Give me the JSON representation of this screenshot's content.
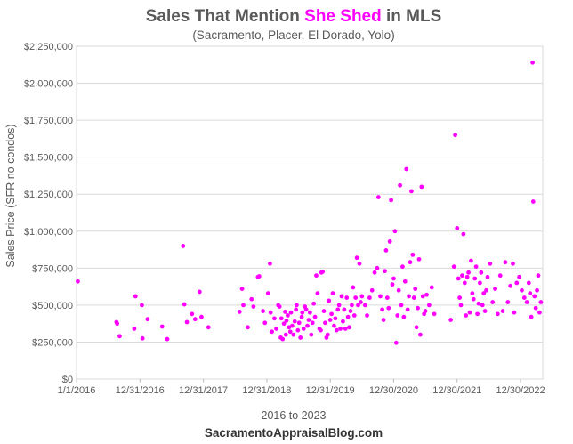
{
  "chart_data": {
    "type": "scatter",
    "title_prefix": "Sales That Mention ",
    "title_highlight": "She Shed",
    "title_suffix": " in MLS",
    "subtitle": "(Sacramento, Placer, El Dorado, Yolo)",
    "ylabel": "Sales Price (SFR no condos)",
    "xlabel": "2016 to 2023",
    "footer": "SacramentoAppraisalBlog.com",
    "x_unit": "years since 1/1/2016",
    "xlim": [
      0,
      7.35
    ],
    "ylim": [
      0,
      2250000
    ],
    "y_ticks": [
      {
        "value": 0,
        "label": "$0"
      },
      {
        "value": 250000,
        "label": "$250,000"
      },
      {
        "value": 500000,
        "label": "$500,000"
      },
      {
        "value": 750000,
        "label": "$750,000"
      },
      {
        "value": 1000000,
        "label": "$1,000,000"
      },
      {
        "value": 1250000,
        "label": "$1,250,000"
      },
      {
        "value": 1500000,
        "label": "$1,500,000"
      },
      {
        "value": 1750000,
        "label": "$1,750,000"
      },
      {
        "value": 2000000,
        "label": "$2,000,000"
      },
      {
        "value": 2250000,
        "label": "$2,250,000"
      }
    ],
    "x_ticks": [
      {
        "value": 0,
        "label": "1/1/2016"
      },
      {
        "value": 1,
        "label": "12/31/2016"
      },
      {
        "value": 2,
        "label": "12/31/2017"
      },
      {
        "value": 3,
        "label": "12/31/2018"
      },
      {
        "value": 4,
        "label": "12/31/2019"
      },
      {
        "value": 5,
        "label": "12/30/2020"
      },
      {
        "value": 6,
        "label": "12/30/2021"
      },
      {
        "value": 7,
        "label": "12/30/2022"
      }
    ],
    "grid": "horizontal",
    "marker_color": "#ff00ff",
    "series": [
      {
        "name": "She Shed sales",
        "points": [
          [
            0.02,
            660000
          ],
          [
            0.63,
            385000
          ],
          [
            0.64,
            375000
          ],
          [
            0.68,
            290000
          ],
          [
            0.91,
            340000
          ],
          [
            0.93,
            560000
          ],
          [
            1.03,
            500000
          ],
          [
            1.04,
            275000
          ],
          [
            1.12,
            405000
          ],
          [
            1.35,
            355000
          ],
          [
            1.43,
            270000
          ],
          [
            1.68,
            900000
          ],
          [
            1.7,
            505000
          ],
          [
            1.74,
            385000
          ],
          [
            1.82,
            440000
          ],
          [
            1.87,
            405000
          ],
          [
            1.94,
            590000
          ],
          [
            1.97,
            420000
          ],
          [
            2.08,
            350000
          ],
          [
            2.57,
            455000
          ],
          [
            2.61,
            610000
          ],
          [
            2.63,
            500000
          ],
          [
            2.7,
            350000
          ],
          [
            2.76,
            540000
          ],
          [
            2.79,
            490000
          ],
          [
            2.86,
            690000
          ],
          [
            2.88,
            695000
          ],
          [
            2.94,
            460000
          ],
          [
            2.97,
            380000
          ],
          [
            3.02,
            580000
          ],
          [
            3.05,
            780000
          ],
          [
            3.06,
            450000
          ],
          [
            3.08,
            320000
          ],
          [
            3.12,
            410000
          ],
          [
            3.15,
            340000
          ],
          [
            3.18,
            500000
          ],
          [
            3.2,
            490000
          ],
          [
            3.22,
            280000
          ],
          [
            3.23,
            410000
          ],
          [
            3.25,
            270000
          ],
          [
            3.27,
            375000
          ],
          [
            3.29,
            455000
          ],
          [
            3.3,
            300000
          ],
          [
            3.31,
            395000
          ],
          [
            3.33,
            430000
          ],
          [
            3.35,
            350000
          ],
          [
            3.37,
            320000
          ],
          [
            3.38,
            450000
          ],
          [
            3.4,
            360000
          ],
          [
            3.42,
            300000
          ],
          [
            3.44,
            390000
          ],
          [
            3.46,
            470000
          ],
          [
            3.47,
            500000
          ],
          [
            3.49,
            330000
          ],
          [
            3.51,
            380000
          ],
          [
            3.53,
            280000
          ],
          [
            3.55,
            420000
          ],
          [
            3.56,
            450000
          ],
          [
            3.58,
            340000
          ],
          [
            3.6,
            490000
          ],
          [
            3.62,
            470000
          ],
          [
            3.64,
            360000
          ],
          [
            3.66,
            400000
          ],
          [
            3.68,
            450000
          ],
          [
            3.7,
            300000
          ],
          [
            3.72,
            380000
          ],
          [
            3.74,
            510000
          ],
          [
            3.76,
            420000
          ],
          [
            3.78,
            700000
          ],
          [
            3.8,
            580000
          ],
          [
            3.83,
            340000
          ],
          [
            3.85,
            330000
          ],
          [
            3.86,
            720000
          ],
          [
            3.88,
            725000
          ],
          [
            3.9,
            460000
          ],
          [
            3.92,
            380000
          ],
          [
            3.94,
            280000
          ],
          [
            3.96,
            300000
          ],
          [
            3.98,
            530000
          ],
          [
            4.0,
            400000
          ],
          [
            4.02,
            440000
          ],
          [
            4.04,
            580000
          ],
          [
            4.06,
            360000
          ],
          [
            4.08,
            410000
          ],
          [
            4.1,
            330000
          ],
          [
            4.12,
            470000
          ],
          [
            4.14,
            500000
          ],
          [
            4.16,
            340000
          ],
          [
            4.18,
            560000
          ],
          [
            4.2,
            390000
          ],
          [
            4.22,
            470000
          ],
          [
            4.24,
            340000
          ],
          [
            4.26,
            550000
          ],
          [
            4.28,
            420000
          ],
          [
            4.3,
            350000
          ],
          [
            4.32,
            460000
          ],
          [
            4.34,
            500000
          ],
          [
            4.36,
            620000
          ],
          [
            4.38,
            430000
          ],
          [
            4.4,
            550000
          ],
          [
            4.42,
            820000
          ],
          [
            4.44,
            500000
          ],
          [
            4.46,
            780000
          ],
          [
            4.48,
            520000
          ],
          [
            4.5,
            560000
          ],
          [
            4.55,
            500000
          ],
          [
            4.58,
            430000
          ],
          [
            4.62,
            550000
          ],
          [
            4.66,
            600000
          ],
          [
            4.7,
            720000
          ],
          [
            4.74,
            750000
          ],
          [
            4.76,
            1230000
          ],
          [
            4.79,
            560000
          ],
          [
            4.82,
            470000
          ],
          [
            4.84,
            400000
          ],
          [
            4.86,
            730000
          ],
          [
            4.88,
            870000
          ],
          [
            4.9,
            550000
          ],
          [
            4.92,
            480000
          ],
          [
            4.94,
            930000
          ],
          [
            4.96,
            1210000
          ],
          [
            4.98,
            640000
          ],
          [
            5.0,
            680000
          ],
          [
            5.02,
            1000000
          ],
          [
            5.04,
            245000
          ],
          [
            5.06,
            430000
          ],
          [
            5.08,
            600000
          ],
          [
            5.1,
            1310000
          ],
          [
            5.12,
            500000
          ],
          [
            5.14,
            760000
          ],
          [
            5.16,
            420000
          ],
          [
            5.18,
            660000
          ],
          [
            5.2,
            1420000
          ],
          [
            5.22,
            470000
          ],
          [
            5.24,
            560000
          ],
          [
            5.26,
            790000
          ],
          [
            5.28,
            1270000
          ],
          [
            5.3,
            840000
          ],
          [
            5.32,
            550000
          ],
          [
            5.34,
            610000
          ],
          [
            5.36,
            350000
          ],
          [
            5.38,
            480000
          ],
          [
            5.4,
            810000
          ],
          [
            5.42,
            300000
          ],
          [
            5.44,
            1300000
          ],
          [
            5.46,
            560000
          ],
          [
            5.48,
            440000
          ],
          [
            5.5,
            460000
          ],
          [
            5.52,
            570000
          ],
          [
            5.56,
            500000
          ],
          [
            5.6,
            620000
          ],
          [
            5.64,
            440000
          ],
          [
            5.9,
            400000
          ],
          [
            5.95,
            760000
          ],
          [
            5.97,
            1650000
          ],
          [
            6.0,
            1020000
          ],
          [
            6.02,
            680000
          ],
          [
            6.04,
            550000
          ],
          [
            6.06,
            500000
          ],
          [
            6.08,
            700000
          ],
          [
            6.1,
            980000
          ],
          [
            6.12,
            650000
          ],
          [
            6.14,
            430000
          ],
          [
            6.16,
            690000
          ],
          [
            6.18,
            720000
          ],
          [
            6.2,
            450000
          ],
          [
            6.22,
            800000
          ],
          [
            6.24,
            580000
          ],
          [
            6.26,
            540000
          ],
          [
            6.28,
            680000
          ],
          [
            6.3,
            760000
          ],
          [
            6.32,
            440000
          ],
          [
            6.34,
            510000
          ],
          [
            6.36,
            650000
          ],
          [
            6.38,
            720000
          ],
          [
            6.4,
            500000
          ],
          [
            6.42,
            580000
          ],
          [
            6.44,
            460000
          ],
          [
            6.46,
            600000
          ],
          [
            6.48,
            690000
          ],
          [
            6.52,
            780000
          ],
          [
            6.56,
            520000
          ],
          [
            6.6,
            610000
          ],
          [
            6.64,
            440000
          ],
          [
            6.68,
            700000
          ],
          [
            6.72,
            460000
          ],
          [
            6.76,
            790000
          ],
          [
            6.8,
            520000
          ],
          [
            6.84,
            630000
          ],
          [
            6.88,
            780000
          ],
          [
            6.9,
            450000
          ],
          [
            6.94,
            650000
          ],
          [
            6.98,
            690000
          ],
          [
            7.02,
            600000
          ],
          [
            7.06,
            550000
          ],
          [
            7.1,
            520000
          ],
          [
            7.13,
            650000
          ],
          [
            7.15,
            580000
          ],
          [
            7.17,
            420000
          ],
          [
            7.19,
            2140000
          ],
          [
            7.2,
            1200000
          ],
          [
            7.22,
            560000
          ],
          [
            7.24,
            480000
          ],
          [
            7.26,
            600000
          ],
          [
            7.28,
            700000
          ],
          [
            7.3,
            450000
          ],
          [
            7.32,
            520000
          ]
        ]
      }
    ]
  }
}
